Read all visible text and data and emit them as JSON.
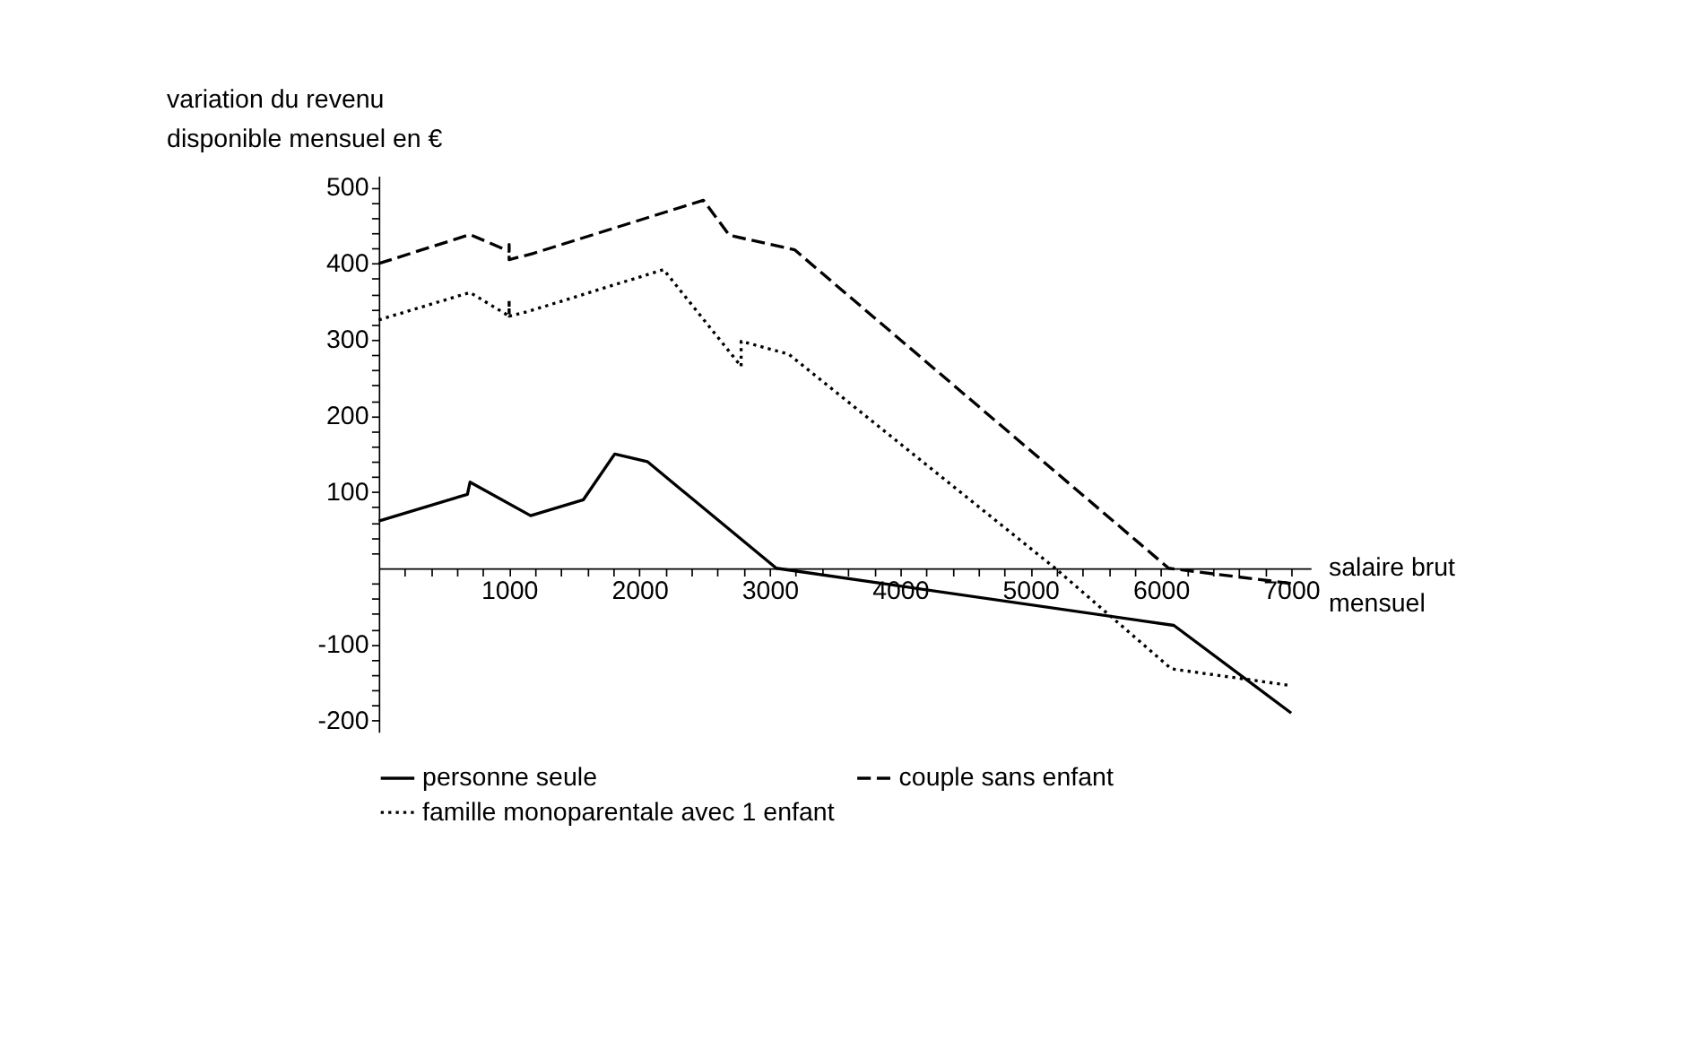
{
  "chart_data": {
    "type": "line",
    "ylabel": "variation du revenu\ndisponible mensuel en €",
    "xlabel": "salaire brut\nmensuel",
    "xlim": [
      0,
      7150
    ],
    "ylim": [
      -215,
      515
    ],
    "xticks": [
      {
        "value": 200,
        "label": null
      },
      {
        "value": 400,
        "label": null
      },
      {
        "value": 600,
        "label": null
      },
      {
        "value": 800,
        "label": null
      },
      1000,
      {
        "value": 1200,
        "label": null
      },
      {
        "value": 1400,
        "label": null
      },
      {
        "value": 1600,
        "label": null
      },
      {
        "value": 1800,
        "label": null
      },
      2000,
      {
        "value": 2200,
        "label": null
      },
      {
        "value": 2400,
        "label": null
      },
      {
        "value": 2600,
        "label": null
      },
      {
        "value": 2800,
        "label": null
      },
      3000,
      {
        "value": 3200,
        "label": null
      },
      {
        "value": 3400,
        "label": null
      },
      {
        "value": 3600,
        "label": null
      },
      {
        "value": 3800,
        "label": null
      },
      4000,
      {
        "value": 4200,
        "label": null
      },
      {
        "value": 4400,
        "label": null
      },
      {
        "value": 4600,
        "label": null
      },
      {
        "value": 4800,
        "label": null
      },
      5000,
      {
        "value": 5200,
        "label": null
      },
      {
        "value": 5400,
        "label": null
      },
      {
        "value": 5600,
        "label": null
      },
      {
        "value": 5800,
        "label": null
      },
      6000,
      {
        "value": 6200,
        "label": null
      },
      {
        "value": 6400,
        "label": null
      },
      {
        "value": 6600,
        "label": null
      },
      {
        "value": 6800,
        "label": null
      },
      7000
    ],
    "yticks": [
      -200,
      {
        "value": -180,
        "label": null
      },
      {
        "value": -160,
        "label": null
      },
      {
        "value": -140,
        "label": null
      },
      {
        "value": -120,
        "label": null
      },
      -100,
      {
        "value": -80,
        "label": null
      },
      {
        "value": -60,
        "label": null
      },
      {
        "value": -40,
        "label": null
      },
      {
        "value": -20,
        "label": null
      },
      {
        "value": 20,
        "label": null
      },
      {
        "value": 40,
        "label": null
      },
      {
        "value": 60,
        "label": null
      },
      {
        "value": 80,
        "label": null
      },
      100,
      {
        "value": 120,
        "label": null
      },
      {
        "value": 140,
        "label": null
      },
      {
        "value": 160,
        "label": null
      },
      {
        "value": 180,
        "label": null
      },
      200,
      {
        "value": 220,
        "label": null
      },
      {
        "value": 240,
        "label": null
      },
      {
        "value": 260,
        "label": null
      },
      {
        "value": 280,
        "label": null
      },
      300,
      {
        "value": 320,
        "label": null
      },
      {
        "value": 340,
        "label": null
      },
      {
        "value": 360,
        "label": null
      },
      {
        "value": 380,
        "label": null
      },
      400,
      {
        "value": 420,
        "label": null
      },
      {
        "value": 440,
        "label": null
      },
      {
        "value": 460,
        "label": null
      },
      {
        "value": 480,
        "label": null
      },
      500
    ],
    "grid": false,
    "legend": "bottom",
    "series": [
      {
        "name": "personne seule",
        "color": "#000000",
        "line_style": "solid",
        "x": [
          0,
          680,
          700,
          1165,
          1570,
          1810,
          2060,
          3050,
          6100,
          7000
        ],
        "values": [
          62,
          97,
          113,
          69,
          90,
          150,
          140,
          0,
          -75,
          -190
        ]
      },
      {
        "name": "couple sans enfant",
        "color": "#000000",
        "line_style": "dashed",
        "x": [
          0,
          700,
          1000,
          1000,
          1000,
          1180,
          2490,
          2690,
          3190,
          6060,
          7000
        ],
        "values": [
          400,
          438,
          416,
          425,
          405,
          413,
          483,
          437,
          418,
          0,
          -20
        ]
      },
      {
        "name": "famille monoparentale avec 1 enfant",
        "color": "#000000",
        "line_style": "dotted",
        "x": [
          0,
          700,
          1000,
          1000,
          1000,
          1145,
          2185,
          2780,
          2780,
          3145,
          5190,
          6080,
          7000
        ],
        "values": [
          326,
          362,
          331,
          352,
          331,
          337,
          392,
          265,
          298,
          281,
          0,
          -132,
          -154
        ]
      }
    ]
  }
}
